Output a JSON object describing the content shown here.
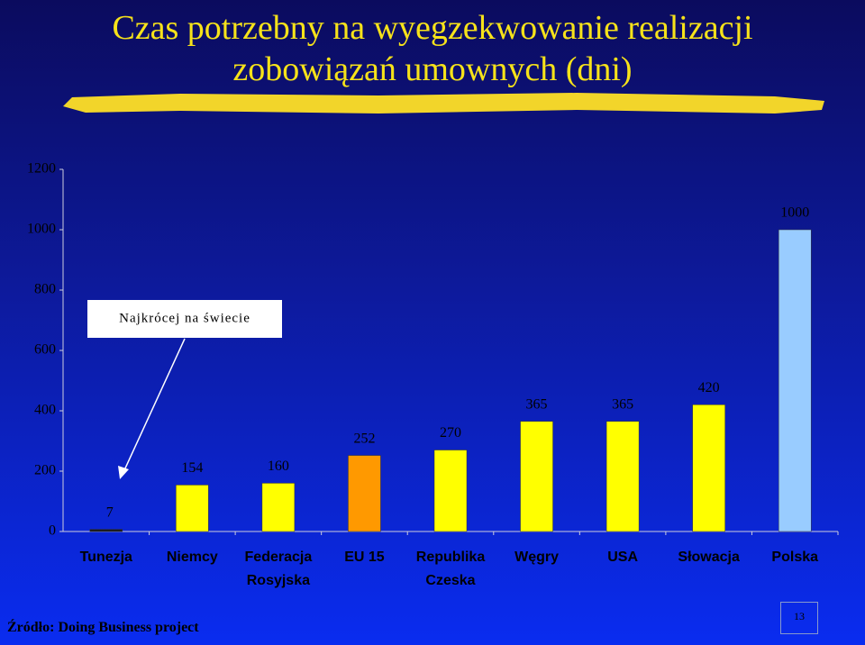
{
  "chart_data": {
    "type": "bar",
    "title": "Czas potrzebny na wyegzekwowanie realizacji zobowiązań umownych (dni)",
    "categories": [
      "Tunezja",
      "Niemcy",
      "Federacja Rosyjska",
      "EU 15",
      "Republika Czeska",
      "Węgry",
      "USA",
      "Słowacja",
      "Polska"
    ],
    "values": [
      7,
      154,
      160,
      252,
      270,
      365,
      365,
      420,
      1000
    ],
    "colors": [
      "#1a1a1a",
      "#ffff00",
      "#ffff00",
      "#ff9900",
      "#ffff00",
      "#ffff00",
      "#ffff00",
      "#ffff00",
      "#99ccff"
    ],
    "ylim": [
      0,
      1200
    ],
    "yticks": [
      0,
      200,
      400,
      600,
      800,
      1000,
      1200
    ],
    "grid": false,
    "annotation": "Najkrócej na świecie",
    "source": "Źródło:  Doing Business project"
  },
  "page_number": 13
}
